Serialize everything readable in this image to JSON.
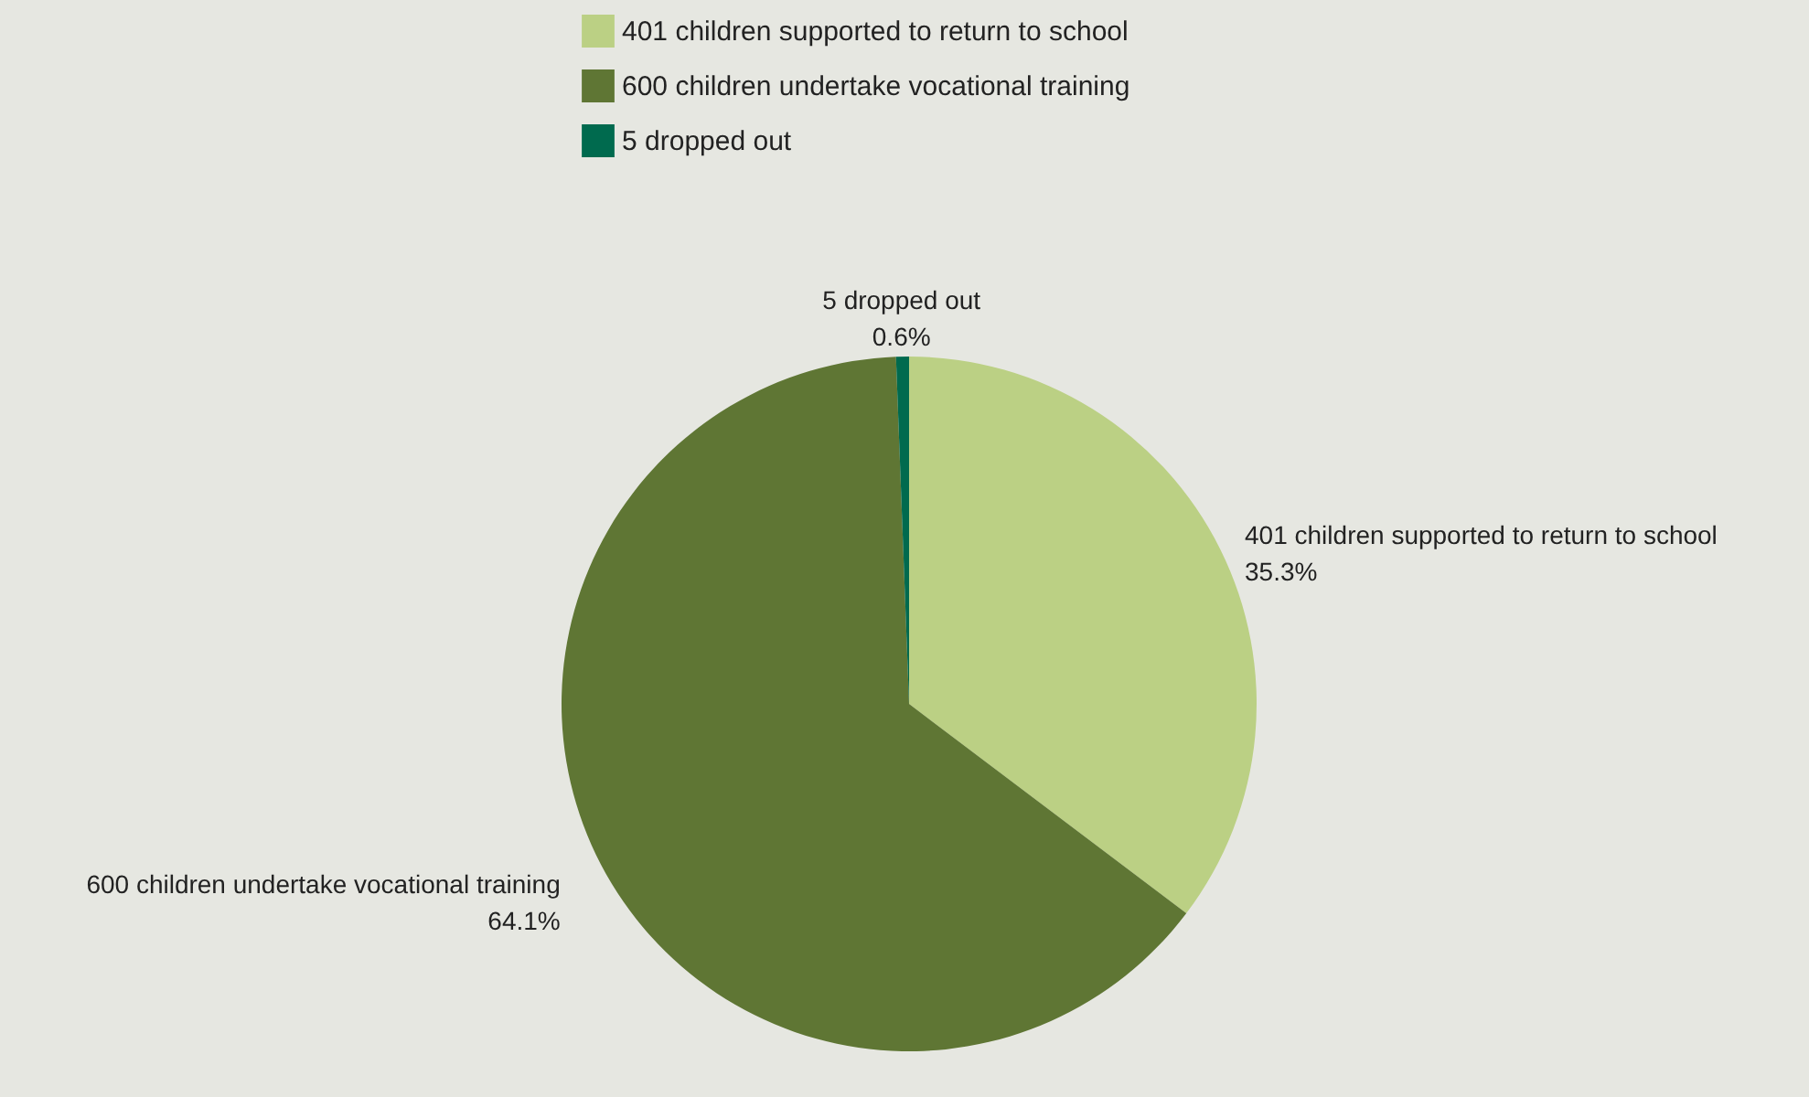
{
  "chart_data": {
    "type": "pie",
    "categories": [
      "401 children supported to return to school",
      "600 children undertake vocational training",
      "5 dropped out"
    ],
    "values": [
      35.3,
      64.1,
      0.6
    ],
    "colors": [
      "#bbd084",
      "#5f7634",
      "#006a4e"
    ],
    "value_labels": [
      "35.3%",
      "64.1%",
      "0.6%"
    ],
    "legend": "top"
  }
}
